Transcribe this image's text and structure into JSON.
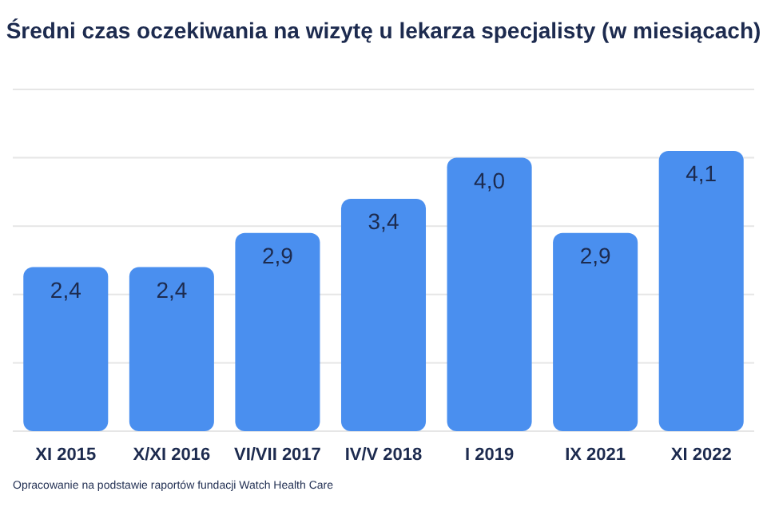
{
  "chart_data": {
    "type": "bar",
    "title": "Średni czas oczekiwania na wizytę u lekarza specjalisty (w miesiącach)",
    "categories": [
      "XI 2015",
      "X/XI 2016",
      "VI/VII 2017",
      "IV/V 2018",
      "I 2019",
      "IX 2021",
      "XI 2022"
    ],
    "values": [
      2.4,
      2.4,
      2.9,
      3.4,
      4.0,
      2.9,
      4.1
    ],
    "value_labels": [
      "2,4",
      "2,4",
      "2,9",
      "3,4",
      "4,0",
      "2,9",
      "4,1"
    ],
    "color": "#4a8fef",
    "ylim": [
      0,
      5
    ],
    "yticks": [
      {
        "value": 0,
        "label": null
      },
      {
        "value": 1,
        "label": null
      },
      {
        "value": 2,
        "label": null
      },
      {
        "value": 3,
        "label": null
      },
      {
        "value": 4,
        "label": null
      },
      {
        "value": 5,
        "label": null
      }
    ],
    "grid": "y",
    "tick_labels": "x",
    "annotations": [
      "Opracowanie na podstawie raportów fundacji Watch Health Care"
    ]
  }
}
